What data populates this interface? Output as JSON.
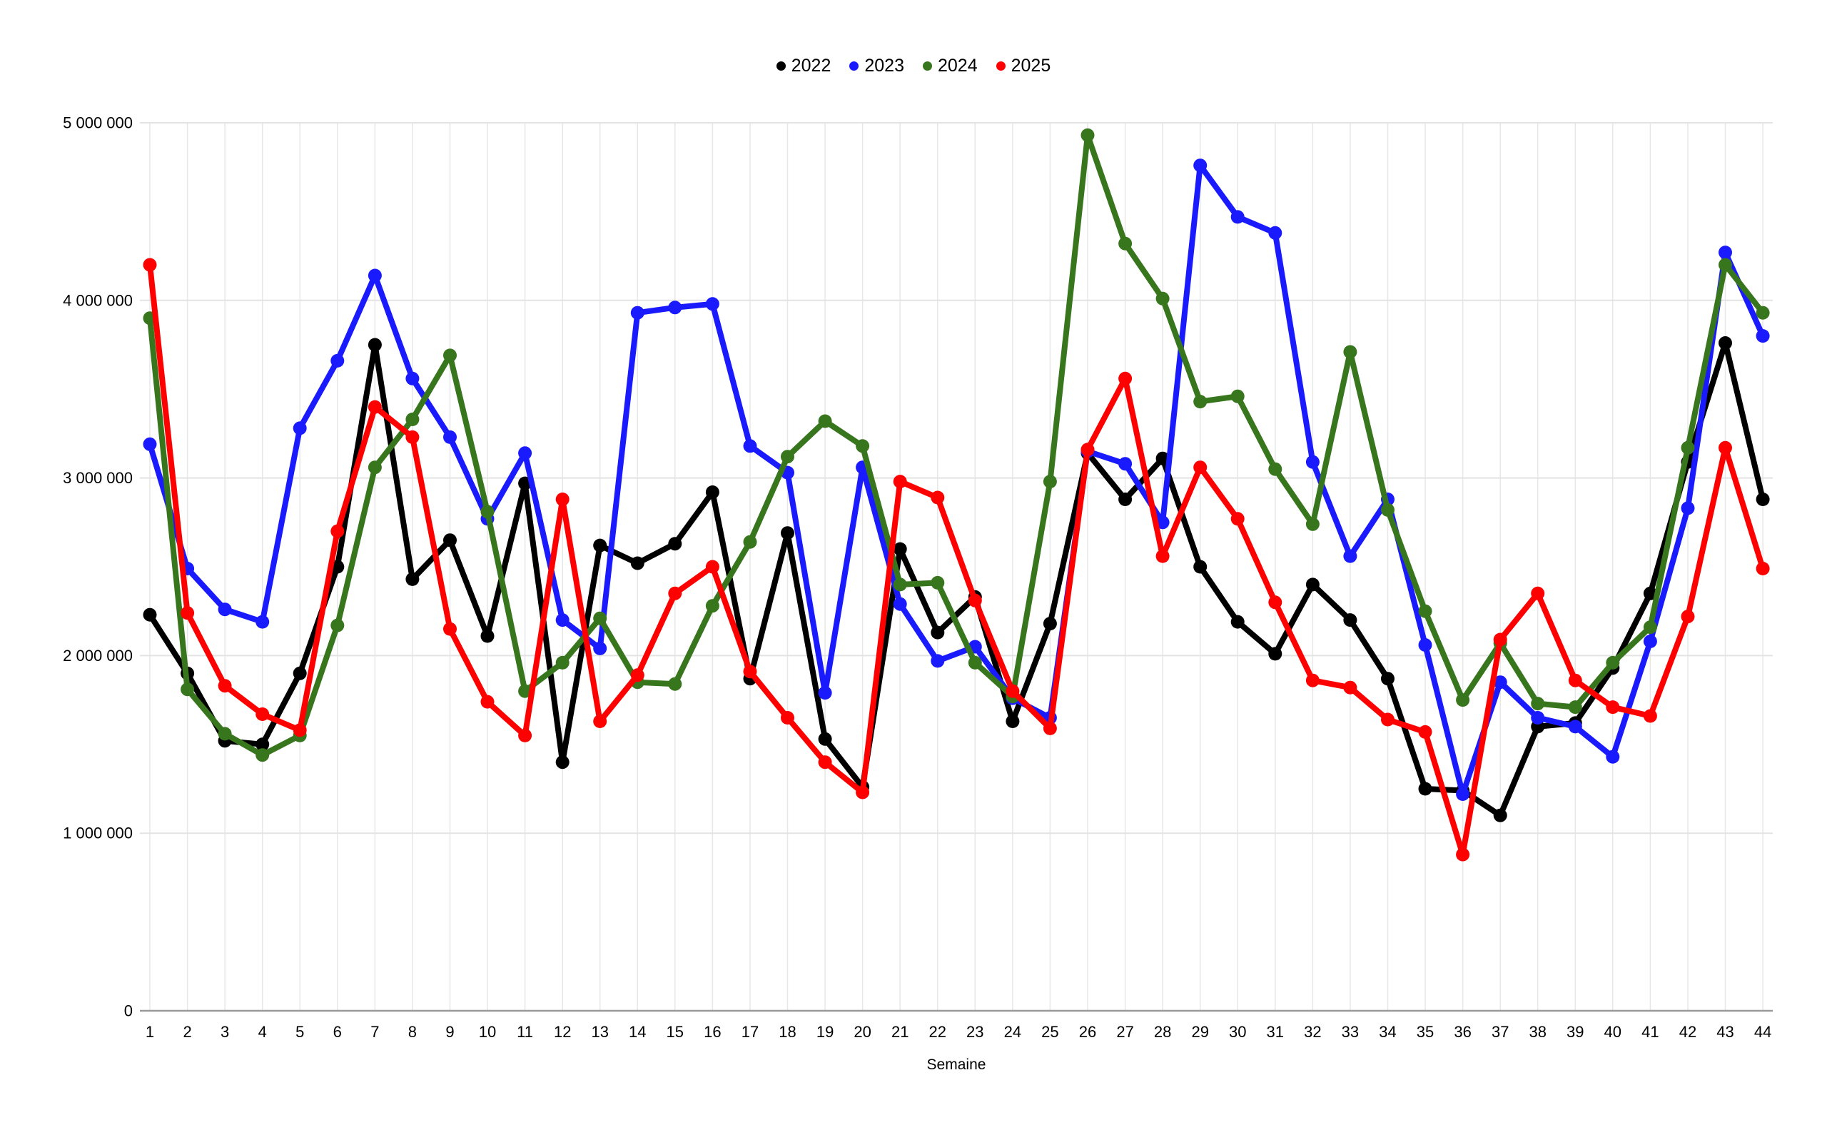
{
  "legend": {
    "items": [
      {
        "label": "2022",
        "color": "#000000"
      },
      {
        "label": "2023",
        "color": "#1a1aff"
      },
      {
        "label": "2024",
        "color": "#38761d"
      },
      {
        "label": "2025",
        "color": "#ff0000"
      }
    ]
  },
  "chart_data": {
    "type": "line",
    "title": "",
    "xlabel": "Semaine",
    "ylabel": "",
    "x": [
      1,
      2,
      3,
      4,
      5,
      6,
      7,
      8,
      9,
      10,
      11,
      12,
      13,
      14,
      15,
      16,
      17,
      18,
      19,
      20,
      21,
      22,
      23,
      24,
      25,
      26,
      27,
      28,
      29,
      30,
      31,
      32,
      33,
      34,
      35,
      36,
      37,
      38,
      39,
      40,
      41,
      42,
      43,
      44
    ],
    "series": [
      {
        "name": "2022",
        "color": "#000000",
        "values": [
          2230000,
          1900000,
          1520000,
          1500000,
          1900000,
          2500000,
          3750000,
          2430000,
          2650000,
          2110000,
          2970000,
          1400000,
          2620000,
          2520000,
          2630000,
          2920000,
          1870000,
          2690000,
          1530000,
          1260000,
          2600000,
          2130000,
          2330000,
          1630000,
          2180000,
          3140000,
          2880000,
          3110000,
          2500000,
          2190000,
          2010000,
          2400000,
          2200000,
          1870000,
          1250000,
          1240000,
          1100000,
          1600000,
          1620000,
          1930000,
          2350000,
          3090000,
          3760000,
          2880000
        ]
      },
      {
        "name": "2023",
        "color": "#1a1aff",
        "values": [
          3190000,
          2490000,
          2260000,
          2190000,
          3280000,
          3660000,
          4140000,
          3560000,
          3230000,
          2770000,
          3140000,
          2200000,
          2040000,
          3930000,
          3960000,
          3980000,
          3180000,
          3030000,
          1790000,
          3060000,
          2290000,
          1970000,
          2050000,
          1760000,
          1650000,
          3150000,
          3080000,
          2750000,
          4760000,
          4470000,
          4380000,
          3090000,
          2560000,
          2880000,
          2060000,
          1220000,
          1850000,
          1650000,
          1600000,
          1430000,
          2080000,
          2830000,
          4270000,
          3800000
        ]
      },
      {
        "name": "2024",
        "color": "#38761d",
        "values": [
          3900000,
          1810000,
          1560000,
          1440000,
          1550000,
          2170000,
          3060000,
          3330000,
          3690000,
          2810000,
          1800000,
          1960000,
          2210000,
          1850000,
          1840000,
          2280000,
          2640000,
          3120000,
          3320000,
          3180000,
          2400000,
          2410000,
          1960000,
          1770000,
          2980000,
          4930000,
          4320000,
          4010000,
          3430000,
          3460000,
          3050000,
          2740000,
          3710000,
          2820000,
          2250000,
          1750000,
          2070000,
          1730000,
          1710000,
          1960000,
          2160000,
          3170000,
          4200000,
          3930000
        ]
      },
      {
        "name": "2025",
        "color": "#ff0000",
        "values": [
          4200000,
          2240000,
          1830000,
          1670000,
          1580000,
          2700000,
          3400000,
          3230000,
          2150000,
          1740000,
          1550000,
          2880000,
          1630000,
          1890000,
          2350000,
          2500000,
          1910000,
          1650000,
          1400000,
          1230000,
          2980000,
          2890000,
          2310000,
          1800000,
          1590000,
          3160000,
          3560000,
          2560000,
          3060000,
          2770000,
          2300000,
          1860000,
          1820000,
          1640000,
          1570000,
          880000,
          2090000,
          2350000,
          1860000,
          1710000,
          1660000,
          2220000,
          3170000,
          2490000
        ]
      }
    ],
    "ylim": [
      0,
      5000000
    ],
    "yticks": [
      0,
      1000000,
      2000000,
      3000000,
      4000000,
      5000000
    ],
    "ytick_labels": [
      "0",
      "1 000 000",
      "2 000 000",
      "3 000 000",
      "4 000 000",
      "5 000 000"
    ],
    "grid": true,
    "legend_position": "top-center",
    "colors": {
      "background": "#ffffff",
      "gridline": "#e7e7e7",
      "baseline": "#999999",
      "text": "#000000"
    }
  }
}
